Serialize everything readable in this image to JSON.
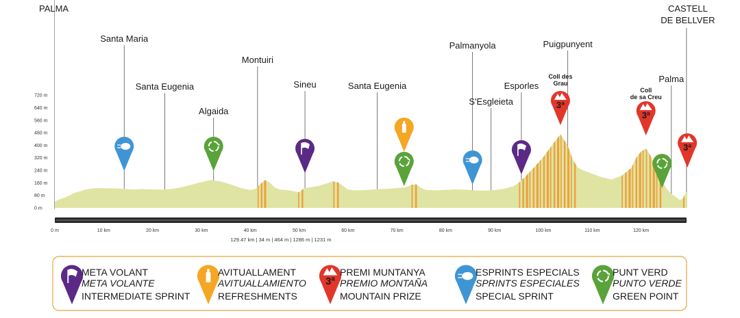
{
  "chart_data": {
    "type": "area",
    "title": "",
    "xlabel": "",
    "ylabel": "",
    "x_unit": "km",
    "y_unit": "m",
    "xlim": [
      0,
      130
    ],
    "ylim": [
      0,
      720
    ],
    "y_ticks": [
      "0 m",
      "80 m",
      "160 m",
      "240 m",
      "320 m",
      "400 m",
      "480 m",
      "560 m",
      "640 m",
      "720 m"
    ],
    "x_ticks": [
      {
        "km": 0,
        "label": "0 m"
      },
      {
        "km": 10,
        "label": "10 km"
      },
      {
        "km": 20,
        "label": "20 km"
      },
      {
        "km": 30,
        "label": "30 km"
      },
      {
        "km": 40,
        "label": "40 km"
      },
      {
        "km": 50,
        "label": "50 km"
      },
      {
        "km": 60,
        "label": "60 km"
      },
      {
        "km": 70,
        "label": "70 km"
      },
      {
        "km": 80,
        "label": "80 km"
      },
      {
        "km": 90,
        "label": "90 km"
      },
      {
        "km": 100,
        "label": "100 km"
      },
      {
        "km": 110,
        "label": "110 km"
      },
      {
        "km": 120,
        "label": "120 km"
      }
    ],
    "profile": [
      [
        0,
        40
      ],
      [
        1,
        55
      ],
      [
        2,
        65
      ],
      [
        3,
        80
      ],
      [
        4,
        95
      ],
      [
        5,
        105
      ],
      [
        6,
        115
      ],
      [
        7,
        122
      ],
      [
        8,
        125
      ],
      [
        9,
        126
      ],
      [
        10,
        126
      ],
      [
        12,
        125
      ],
      [
        14,
        122
      ],
      [
        16,
        118
      ],
      [
        18,
        120
      ],
      [
        20,
        118
      ],
      [
        22,
        116
      ],
      [
        24,
        122
      ],
      [
        26,
        132
      ],
      [
        28,
        148
      ],
      [
        30,
        165
      ],
      [
        32,
        178
      ],
      [
        34,
        168
      ],
      [
        36,
        150
      ],
      [
        38,
        128
      ],
      [
        40,
        115
      ],
      [
        41,
        120
      ],
      [
        42,
        150
      ],
      [
        43,
        178
      ],
      [
        44,
        162
      ],
      [
        45,
        130
      ],
      [
        46,
        118
      ],
      [
        48,
        112
      ],
      [
        50,
        100
      ],
      [
        51,
        125
      ],
      [
        52,
        130
      ],
      [
        54,
        140
      ],
      [
        56,
        160
      ],
      [
        57,
        170
      ],
      [
        58,
        162
      ],
      [
        59,
        140
      ],
      [
        60,
        118
      ],
      [
        61,
        113
      ],
      [
        62,
        112
      ],
      [
        64,
        115
      ],
      [
        66,
        120
      ],
      [
        68,
        122
      ],
      [
        70,
        126
      ],
      [
        72,
        133
      ],
      [
        73,
        148
      ],
      [
        74,
        150
      ],
      [
        75,
        128
      ],
      [
        76,
        115
      ],
      [
        78,
        112
      ],
      [
        80,
        115
      ],
      [
        82,
        118
      ],
      [
        84,
        116
      ],
      [
        86,
        112
      ],
      [
        88,
        110
      ],
      [
        90,
        114
      ],
      [
        92,
        122
      ],
      [
        94,
        140
      ],
      [
        95,
        162
      ],
      [
        96,
        190
      ],
      [
        98,
        255
      ],
      [
        100,
        325
      ],
      [
        102,
        410
      ],
      [
        103.5,
        470
      ],
      [
        105,
        398
      ],
      [
        106,
        310
      ],
      [
        107,
        260
      ],
      [
        108,
        242
      ],
      [
        110,
        218
      ],
      [
        112,
        195
      ],
      [
        114,
        182
      ],
      [
        116,
        205
      ],
      [
        118,
        255
      ],
      [
        119,
        320
      ],
      [
        120,
        360
      ],
      [
        121,
        380
      ],
      [
        122,
        330
      ],
      [
        123,
        258
      ],
      [
        124,
        188
      ],
      [
        125,
        132
      ],
      [
        126,
        96
      ],
      [
        127,
        72
      ],
      [
        128,
        50
      ],
      [
        128.6,
        62
      ],
      [
        129,
        85
      ],
      [
        129.47,
        110
      ]
    ],
    "steep_sections": [
      [
        41.5,
        43.5
      ],
      [
        49.8,
        51.2
      ],
      [
        57,
        58.5
      ],
      [
        73,
        74.5
      ],
      [
        95,
        103.5
      ],
      [
        103.5,
        107
      ],
      [
        116,
        121
      ],
      [
        121,
        124.5
      ],
      [
        128.6,
        129.47
      ]
    ],
    "places": [
      {
        "name": "PALMA",
        "km": 0,
        "bold": false
      },
      {
        "name": "Santa Maria",
        "km": 14.2,
        "bold": false
      },
      {
        "name": "Santa Eugenia",
        "km": 22.5,
        "bold": false
      },
      {
        "name": "Algaida",
        "km": 32.5,
        "bold": false
      },
      {
        "name": "Montuiri",
        "km": 41.5,
        "bold": false
      },
      {
        "name": "Sineu",
        "km": 51.2,
        "bold": false
      },
      {
        "name": "Santa Eugenia",
        "km": 66,
        "bold": false
      },
      {
        "name": "Palmanyola",
        "km": 85.5,
        "bold": false
      },
      {
        "name": "S'Esgleieta",
        "km": 89.3,
        "bold": false
      },
      {
        "name": "Esporles",
        "km": 95.5,
        "bold": false
      },
      {
        "name": "Puigpunyent",
        "km": 105,
        "bold": false
      },
      {
        "name": "Palma",
        "km": 126.2,
        "bold": false
      },
      {
        "name_lines": [
          "CASTELL",
          "DE BELLVER"
        ],
        "km": 129.3,
        "bold": false
      }
    ],
    "climbs": [
      {
        "name_lines": [
          "Coll des",
          "Grau"
        ],
        "km": 103.5,
        "category": "3ª"
      },
      {
        "name_lines": [
          "Coll",
          "de sa Creu"
        ],
        "km": 121,
        "category": "3ª"
      },
      {
        "name_lines": [],
        "km": 129.47,
        "category": "3ª"
      }
    ],
    "markers": [
      {
        "type": "special-sprint",
        "km": 14.2
      },
      {
        "type": "green-point",
        "km": 32.5
      },
      {
        "type": "intermediate-sprint",
        "km": 51.2
      },
      {
        "type": "refreshments",
        "km": 71.5
      },
      {
        "type": "green-point",
        "km": 71.5
      },
      {
        "type": "special-sprint",
        "km": 85.5
      },
      {
        "type": "intermediate-sprint",
        "km": 95.5
      },
      {
        "type": "mountain-prize",
        "km": 103.5
      },
      {
        "type": "mountain-prize",
        "km": 121
      },
      {
        "type": "green-point",
        "km": 124.3
      },
      {
        "type": "mountain-prize",
        "km": 129.47
      }
    ],
    "stats_text": "129.47 km  |  34 m  |  464 m  |  1286 m  |  1231 m"
  },
  "colors": {
    "profile_fill": "#dfe4a2",
    "steep_fill": "#f08c1e",
    "axis": "#222222",
    "intermediate-sprint": "#5b2a86",
    "refreshments": "#f5a623",
    "mountain-prize": "#e2362a",
    "special-sprint": "#3f95d4",
    "green-point": "#5aa33a",
    "legend_border": "#e8a33d"
  },
  "legend": [
    {
      "type": "intermediate-sprint",
      "line1": "META VOLANT",
      "line2": "META VOLANTE",
      "line3": "INTERMEDIATE SPRINT"
    },
    {
      "type": "refreshments",
      "line1": "AVITUALLAMENT",
      "line2": "AVITUALLAMIENTO",
      "line3": "REFRESHMENTS"
    },
    {
      "type": "mountain-prize",
      "line1": "PREMI MUNTANYA",
      "line2": "PREMIO MONTAÑA",
      "line3": "MOUNTAIN PRIZE"
    },
    {
      "type": "special-sprint",
      "line1": "ESPRINTS ESPECIALS",
      "line2": "SPRINTS ESPECIALES",
      "line3": "SPECIAL SPRINT"
    },
    {
      "type": "green-point",
      "line1": "PUNT VERD",
      "line2": "PUNTO VERDE",
      "line3": "GREEN POINT"
    }
  ]
}
